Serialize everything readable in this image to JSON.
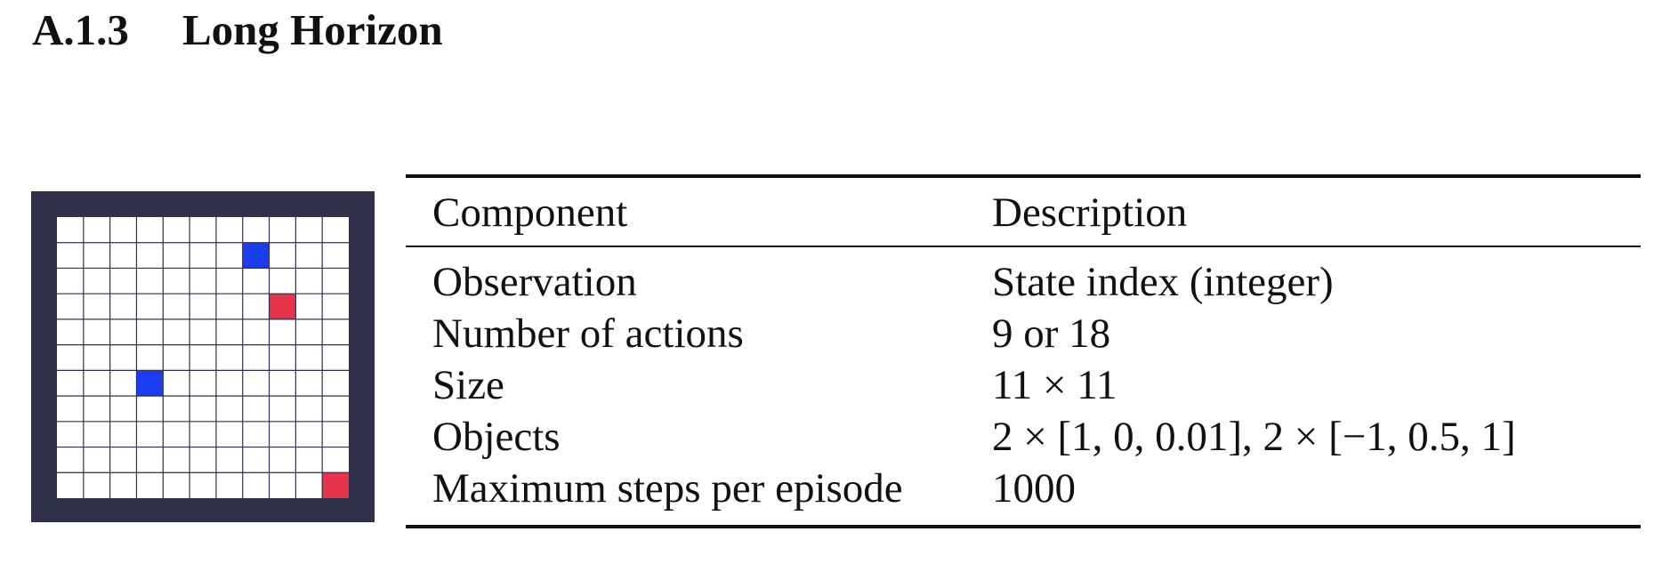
{
  "section": {
    "number": "A.1.3",
    "title": "Long Horizon"
  },
  "figure": {
    "grid_size": 11,
    "background_color": "#31304a",
    "cell_color": "#ffffff",
    "line_color": "#31304a",
    "blue_color": "#1a3df2",
    "red_color": "#e5344a",
    "blue_cells": [
      [
        7,
        1
      ],
      [
        3,
        6
      ]
    ],
    "red_cells": [
      [
        8,
        3
      ],
      [
        10,
        10
      ]
    ]
  },
  "table": {
    "headers": [
      "Component",
      "Description"
    ],
    "rows": [
      [
        "Observation",
        "State index (integer)"
      ],
      [
        "Number of actions",
        "9 or 18"
      ],
      [
        "Size",
        "11 × 11"
      ],
      [
        "Objects",
        "2 × [1, 0, 0.01], 2 × [−1, 0.5, 1]"
      ],
      [
        "Maximum steps per episode",
        "1000"
      ]
    ]
  }
}
